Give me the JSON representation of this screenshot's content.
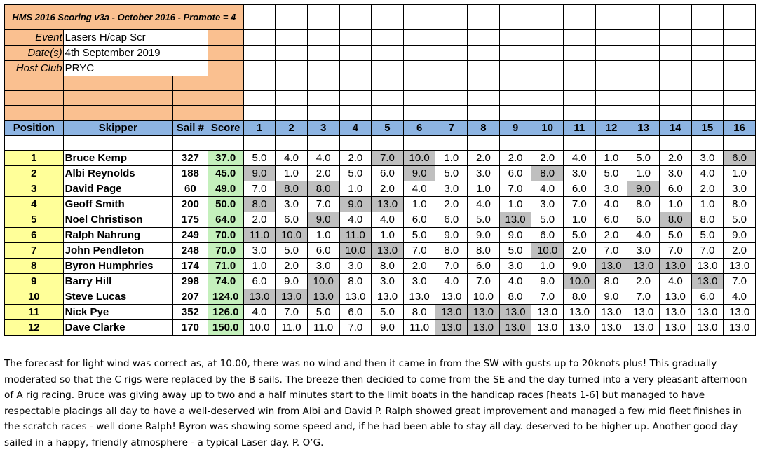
{
  "header": {
    "title": "HMS 2016 Scoring v3a - October 2016 - Promote = 4",
    "rows": [
      {
        "label": "Event",
        "value": "Lasers H/cap Scr"
      },
      {
        "label": "Date(s)",
        "value": "4th September 2019"
      },
      {
        "label": "Host Club",
        "value": "PRYC"
      }
    ]
  },
  "columns": {
    "position": "Position",
    "skipper": "Skipper",
    "sail": "Sail #",
    "score": "Score",
    "races": [
      "1",
      "2",
      "3",
      "4",
      "5",
      "6",
      "7",
      "8",
      "9",
      "10",
      "11",
      "12",
      "13",
      "14",
      "15",
      "16"
    ]
  },
  "results": [
    {
      "position": "1",
      "skipper": "Bruce Kemp",
      "sail": "327",
      "score": "37.0",
      "races": [
        "5.0",
        "4.0",
        "4.0",
        "2.0",
        "7.0",
        "10.0",
        "1.0",
        "2.0",
        "2.0",
        "2.0",
        "4.0",
        "1.0",
        "5.0",
        "2.0",
        "3.0",
        "6.0"
      ],
      "discards": [
        false,
        false,
        false,
        false,
        true,
        true,
        false,
        false,
        false,
        false,
        false,
        false,
        false,
        false,
        false,
        true
      ]
    },
    {
      "position": "2",
      "skipper": "Albi Reynolds",
      "sail": "188",
      "score": "45.0",
      "races": [
        "9.0",
        "1.0",
        "2.0",
        "5.0",
        "6.0",
        "9.0",
        "5.0",
        "3.0",
        "6.0",
        "8.0",
        "3.0",
        "5.0",
        "1.0",
        "3.0",
        "4.0",
        "1.0"
      ],
      "discards": [
        true,
        false,
        false,
        false,
        false,
        true,
        false,
        false,
        false,
        true,
        false,
        false,
        false,
        false,
        false,
        false
      ]
    },
    {
      "position": "3",
      "skipper": "David Page",
      "sail": "60",
      "score": "49.0",
      "races": [
        "7.0",
        "8.0",
        "8.0",
        "1.0",
        "2.0",
        "4.0",
        "3.0",
        "1.0",
        "7.0",
        "4.0",
        "6.0",
        "3.0",
        "9.0",
        "6.0",
        "2.0",
        "3.0"
      ],
      "discards": [
        false,
        true,
        true,
        false,
        false,
        false,
        false,
        false,
        false,
        false,
        false,
        false,
        true,
        false,
        false,
        false
      ]
    },
    {
      "position": "4",
      "skipper": "Geoff Smith",
      "sail": "200",
      "score": "50.0",
      "races": [
        "8.0",
        "3.0",
        "7.0",
        "9.0",
        "13.0",
        "1.0",
        "2.0",
        "4.0",
        "1.0",
        "3.0",
        "7.0",
        "4.0",
        "8.0",
        "1.0",
        "1.0",
        "8.0"
      ],
      "discards": [
        true,
        false,
        false,
        true,
        true,
        false,
        false,
        false,
        false,
        false,
        false,
        false,
        false,
        false,
        false,
        false
      ]
    },
    {
      "position": "5",
      "skipper": "Noel Christison",
      "sail": "175",
      "score": "64.0",
      "races": [
        "2.0",
        "6.0",
        "9.0",
        "4.0",
        "4.0",
        "6.0",
        "6.0",
        "5.0",
        "13.0",
        "5.0",
        "1.0",
        "6.0",
        "6.0",
        "8.0",
        "8.0",
        "5.0"
      ],
      "discards": [
        false,
        false,
        true,
        false,
        false,
        false,
        false,
        false,
        true,
        false,
        false,
        false,
        false,
        true,
        false,
        false
      ]
    },
    {
      "position": "6",
      "skipper": "Ralph Nahrung",
      "sail": "249",
      "score": "70.0",
      "races": [
        "11.0",
        "10.0",
        "1.0",
        "11.0",
        "1.0",
        "5.0",
        "9.0",
        "9.0",
        "9.0",
        "6.0",
        "5.0",
        "2.0",
        "4.0",
        "5.0",
        "5.0",
        "9.0"
      ],
      "discards": [
        true,
        true,
        false,
        true,
        false,
        false,
        false,
        false,
        false,
        false,
        false,
        false,
        false,
        false,
        false,
        false
      ]
    },
    {
      "position": "7",
      "skipper": "John Pendleton",
      "sail": "248",
      "score": "70.0",
      "races": [
        "3.0",
        "5.0",
        "6.0",
        "10.0",
        "13.0",
        "7.0",
        "8.0",
        "8.0",
        "5.0",
        "10.0",
        "2.0",
        "7.0",
        "3.0",
        "7.0",
        "7.0",
        "2.0"
      ],
      "discards": [
        false,
        false,
        false,
        true,
        true,
        false,
        false,
        false,
        false,
        true,
        false,
        false,
        false,
        false,
        false,
        false
      ]
    },
    {
      "position": "8",
      "skipper": "Byron Humphries",
      "sail": "174",
      "score": "71.0",
      "races": [
        "1.0",
        "2.0",
        "3.0",
        "3.0",
        "8.0",
        "2.0",
        "7.0",
        "6.0",
        "3.0",
        "1.0",
        "9.0",
        "13.0",
        "13.0",
        "13.0",
        "13.0",
        "13.0"
      ],
      "discards": [
        false,
        false,
        false,
        false,
        false,
        false,
        false,
        false,
        false,
        false,
        false,
        true,
        true,
        true,
        false,
        false
      ]
    },
    {
      "position": "9",
      "skipper": "Barry Hill",
      "sail": "298",
      "score": "74.0",
      "races": [
        "6.0",
        "9.0",
        "10.0",
        "8.0",
        "3.0",
        "3.0",
        "4.0",
        "7.0",
        "4.0",
        "9.0",
        "10.0",
        "8.0",
        "2.0",
        "4.0",
        "13.0",
        "7.0"
      ],
      "discards": [
        false,
        false,
        true,
        false,
        false,
        false,
        false,
        false,
        false,
        false,
        true,
        false,
        false,
        false,
        true,
        false
      ]
    },
    {
      "position": "10",
      "skipper": "Steve Lucas",
      "sail": "207",
      "score": "124.0",
      "races": [
        "13.0",
        "13.0",
        "13.0",
        "13.0",
        "13.0",
        "13.0",
        "13.0",
        "10.0",
        "8.0",
        "7.0",
        "8.0",
        "9.0",
        "7.0",
        "13.0",
        "6.0",
        "4.0"
      ],
      "discards": [
        true,
        true,
        true,
        false,
        false,
        false,
        false,
        false,
        false,
        false,
        false,
        false,
        false,
        false,
        false,
        false
      ]
    },
    {
      "position": "11",
      "skipper": "Nick Pye",
      "sail": "352",
      "score": "126.0",
      "races": [
        "4.0",
        "7.0",
        "5.0",
        "6.0",
        "5.0",
        "8.0",
        "13.0",
        "13.0",
        "13.0",
        "13.0",
        "13.0",
        "13.0",
        "13.0",
        "13.0",
        "13.0",
        "13.0"
      ],
      "discards": [
        false,
        false,
        false,
        false,
        false,
        false,
        true,
        true,
        true,
        false,
        false,
        false,
        false,
        false,
        false,
        false
      ]
    },
    {
      "position": "12",
      "skipper": "Dave Clarke",
      "sail": "170",
      "score": "150.0",
      "races": [
        "10.0",
        "11.0",
        "11.0",
        "7.0",
        "9.0",
        "11.0",
        "13.0",
        "13.0",
        "13.0",
        "13.0",
        "13.0",
        "13.0",
        "13.0",
        "13.0",
        "13.0",
        "13.0"
      ],
      "discards": [
        false,
        false,
        false,
        false,
        false,
        false,
        true,
        true,
        true,
        false,
        false,
        false,
        false,
        false,
        false,
        false
      ]
    }
  ],
  "report": "The forecast for light wind was correct as, at 10.00, there was no wind and then it came in from the SW with gusts up to 20knots plus! This gradually moderated so that the C rigs were replaced by the B sails. The breeze then decided to come from the SE and the day turned into a very pleasant afternoon of A rig racing. Bruce was giving away up to two and a half minutes start to the limit boats in the handicap races [heats 1-6] but managed to have respectable placings all day to have a well-deserved win from Albi and David P.  Ralph showed great improvement and managed a few mid fleet finishes in the scratch races - well done Ralph!  Byron was showing some speed and, if he had been able to stay all day. deserved to be higher up. Another good day sailed in a happy, friendly atmosphere - a typical Laser day.      P. O’G."
}
